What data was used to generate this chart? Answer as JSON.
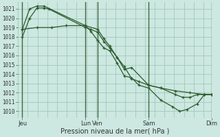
{
  "title": "Pression niveau de la mer( hPa )",
  "ylabel_values": [
    1010,
    1011,
    1012,
    1013,
    1014,
    1015,
    1016,
    1017,
    1018,
    1019,
    1020,
    1021
  ],
  "ylim": [
    1009.3,
    1021.7
  ],
  "xlim": [
    -0.3,
    13.0
  ],
  "bg_color": "#cce8e0",
  "grid_color": "#a0c8bc",
  "line_color": "#2d5a2d",
  "vline_color": "#446644",
  "vline_positions": [
    0.0,
    4.33,
    5.17,
    8.67,
    13.0
  ],
  "xtick_positions": [
    0.0,
    4.33,
    5.17,
    8.67,
    13.0
  ],
  "xtick_labels": [
    "Jeu",
    "Lun",
    "Ven",
    "Sam",
    "Dim"
  ],
  "series": [
    {
      "x": [
        0.0,
        0.5,
        1.0,
        1.5,
        1.8,
        4.33,
        4.7,
        5.17,
        5.6,
        6.0,
        6.5,
        7.0,
        7.5,
        8.67,
        9.5,
        10.5,
        11.5,
        12.5,
        13.0
      ],
      "y": [
        1018.0,
        1020.0,
        1021.1,
        1021.1,
        1021.0,
        1019.0,
        1018.8,
        1018.5,
        1017.5,
        1016.8,
        1015.8,
        1014.5,
        1014.7,
        1012.8,
        1012.5,
        1012.2,
        1012.0,
        1011.8,
        1011.8
      ]
    },
    {
      "x": [
        0.0,
        0.5,
        1.0,
        1.5,
        4.33,
        4.7,
        5.17,
        5.6,
        6.0,
        6.5,
        7.0,
        7.5,
        8.0,
        8.67,
        9.5,
        10.3,
        10.8,
        11.3,
        12.0,
        12.5,
        13.0
      ],
      "y": [
        1018.8,
        1021.0,
        1021.3,
        1021.3,
        1019.2,
        1018.6,
        1017.6,
        1016.8,
        1016.5,
        1015.2,
        1013.8,
        1013.6,
        1012.8,
        1012.5,
        1011.2,
        1010.5,
        1010.0,
        1010.2,
        1010.8,
        1011.8,
        1011.8
      ]
    },
    {
      "x": [
        0.0,
        1.0,
        2.0,
        3.0,
        4.33,
        5.17,
        5.6,
        6.0,
        6.5,
        7.0,
        7.5,
        8.0,
        8.67,
        9.5,
        10.5,
        11.0,
        11.5,
        12.0,
        12.5,
        13.0
      ],
      "y": [
        1018.8,
        1019.0,
        1019.0,
        1019.2,
        1019.2,
        1018.8,
        1017.8,
        1017.0,
        1015.8,
        1014.8,
        1013.5,
        1013.2,
        1012.8,
        1012.5,
        1011.8,
        1011.5,
        1011.5,
        1011.8,
        1011.8,
        1011.8
      ]
    }
  ]
}
